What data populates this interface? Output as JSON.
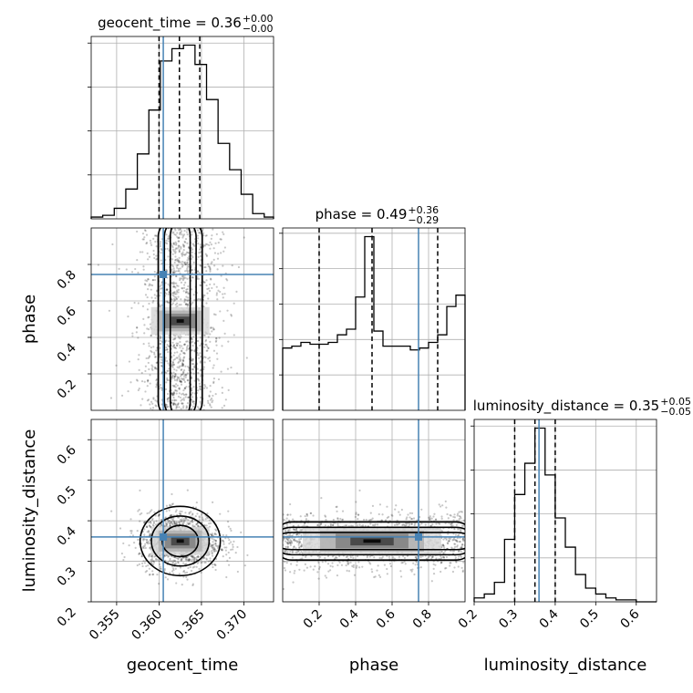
{
  "chart_data": {
    "type": "corner",
    "parameters": [
      "geocent_time",
      "phase",
      "luminosity_distance"
    ],
    "truths": {
      "geocent_time": 0.3605,
      "phase": 0.745,
      "luminosity_distance": 0.36
    },
    "colors": {
      "truth": "#4682b4",
      "hist": "#000000",
      "grid": "#b0b0b0"
    },
    "grid": true,
    "titles": [
      {
        "param": "geocent_time",
        "name": "geocent_time",
        "value": "0.36",
        "plus": "+0.00",
        "minus": "−0.00"
      },
      {
        "param": "phase",
        "name": "phase",
        "value": "0.49",
        "plus": "+0.36",
        "minus": "−0.29"
      },
      {
        "param": "luminosity_distance",
        "name": "luminosity_distance",
        "value": "0.35",
        "plus": "+0.05",
        "minus": "−0.05"
      }
    ],
    "axes": {
      "geocent_time": {
        "range": [
          0.352,
          0.3735
        ],
        "ticks": [
          0.355,
          0.36,
          0.365,
          0.37
        ],
        "tick_labels": [
          "0.355",
          "0.360",
          "0.365",
          "0.370"
        ]
      },
      "phase": {
        "range": [
          0.0,
          1.0
        ],
        "ticks": [
          0.2,
          0.4,
          0.6,
          0.8
        ],
        "tick_labels": [
          "0.2",
          "0.4",
          "0.6",
          "0.8"
        ]
      },
      "luminosity_distance": {
        "range": [
          0.2,
          0.65
        ],
        "ticks": [
          0.2,
          0.3,
          0.4,
          0.5,
          0.6
        ],
        "tick_labels": [
          "0.2",
          "0.3",
          "0.4",
          "0.5",
          "0.6"
        ]
      }
    },
    "marginals": {
      "geocent_time": {
        "bins": [
          0.352,
          0.35336,
          0.35472,
          0.35608,
          0.35744,
          0.3588,
          0.36016,
          0.36152,
          0.36288,
          0.36424,
          0.3656,
          0.36696,
          0.36832,
          0.36968,
          0.37104,
          0.3724,
          0.3735
        ],
        "counts": [
          1,
          2,
          6,
          17,
          37,
          62,
          90,
          97,
          99,
          88,
          68,
          43,
          28,
          14,
          3,
          1
        ],
        "quantiles": [
          0.36,
          0.3624,
          0.3648
        ],
        "yticks": [
          1,
          2,
          3,
          4
        ]
      },
      "phase": {
        "bins": [
          0.0,
          0.05,
          0.1,
          0.15,
          0.2,
          0.25,
          0.3,
          0.35,
          0.4,
          0.45,
          0.5,
          0.55,
          0.6,
          0.65,
          0.7,
          0.75,
          0.8,
          0.85,
          0.9,
          0.95,
          1.0
        ],
        "counts": [
          33,
          34,
          36,
          35,
          35,
          36,
          40,
          43,
          60,
          92,
          42,
          34,
          34,
          34,
          32,
          33,
          36,
          40,
          55,
          61
        ],
        "quantiles": [
          0.2,
          0.49,
          0.85
        ],
        "yticks": [
          1,
          2,
          3,
          4,
          5
        ]
      },
      "luminosity_distance": {
        "bins": [
          0.2,
          0.225,
          0.25,
          0.275,
          0.3,
          0.325,
          0.35,
          0.375,
          0.4,
          0.425,
          0.45,
          0.475,
          0.5,
          0.525,
          0.55,
          0.575,
          0.6,
          0.625,
          0.65
        ],
        "counts": [
          2,
          4,
          10,
          32,
          55,
          71,
          89,
          65,
          43,
          28,
          14,
          7,
          4,
          2,
          1,
          1,
          0,
          0
        ],
        "quantiles": [
          0.3,
          0.35,
          0.4
        ],
        "yticks": [
          1,
          2,
          3,
          4
        ]
      }
    }
  }
}
